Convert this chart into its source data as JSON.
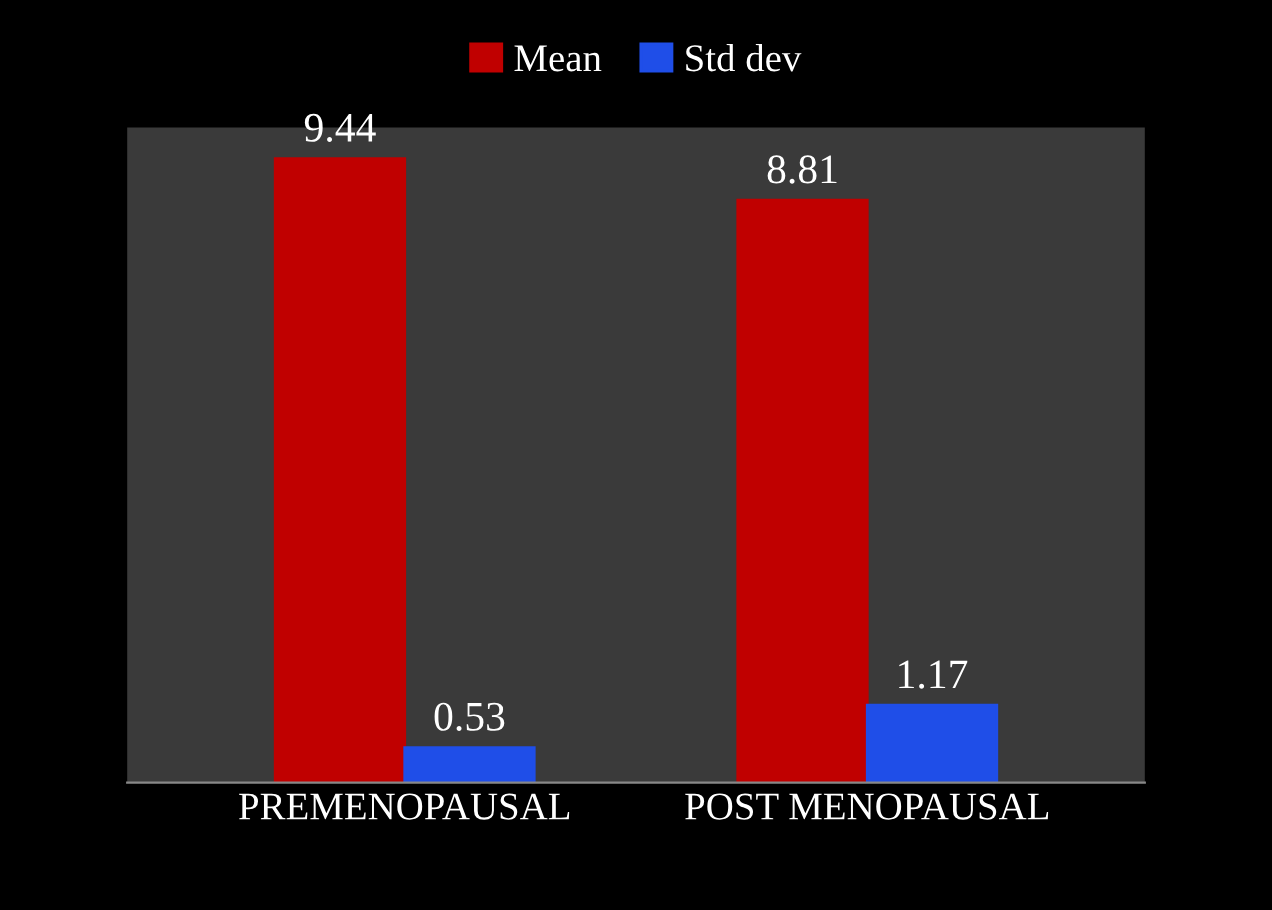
{
  "chart_data": {
    "type": "bar",
    "categories": [
      "PREMENOPAUSAL",
      "POST MENOPAUSAL"
    ],
    "series": [
      {
        "name": "Mean",
        "color": "#c00000",
        "values": [
          9.44,
          8.81
        ]
      },
      {
        "name": "Std dev",
        "color": "#1f4ee8",
        "values": [
          0.53,
          1.17
        ]
      }
    ],
    "data_labels": true,
    "legend": "top",
    "tick_labels": "x",
    "grid": false
  }
}
